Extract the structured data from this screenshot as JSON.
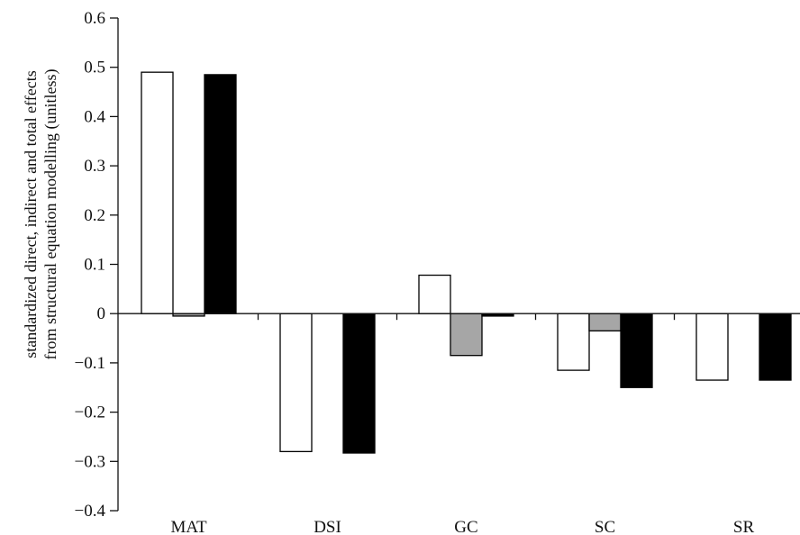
{
  "chart_data": {
    "type": "bar",
    "title": "",
    "xlabel": "",
    "ylabel_lines": [
      "standardized direct, indirect and total effects",
      "from structural equation modelling (unitless)"
    ],
    "categories": [
      "MAT",
      "DSI",
      "GC",
      "SC",
      "SR"
    ],
    "ylim": [
      -0.4,
      0.6
    ],
    "yticks": [
      -0.4,
      -0.3,
      -0.2,
      -0.1,
      0,
      0.1,
      0.2,
      0.3,
      0.4,
      0.5,
      0.6
    ],
    "ytick_labels": [
      "−0.4",
      "−0.3",
      "−0.2",
      "−0.1",
      "0",
      "0.1",
      "0.2",
      "0.3",
      "0.4",
      "0.5",
      "0.6"
    ],
    "grid": false,
    "legend": "none",
    "series": [
      {
        "key": "direct",
        "color": "#ffffff",
        "values": [
          0.49,
          -0.28,
          0.078,
          -0.115,
          -0.135
        ]
      },
      {
        "key": "indirect",
        "color": "#a6a6a6",
        "values": [
          -0.005,
          0,
          -0.085,
          -0.035,
          0
        ]
      },
      {
        "key": "total",
        "color": "#000000",
        "values": [
          0.485,
          -0.283,
          -0.005,
          -0.15,
          -0.135
        ]
      }
    ]
  }
}
